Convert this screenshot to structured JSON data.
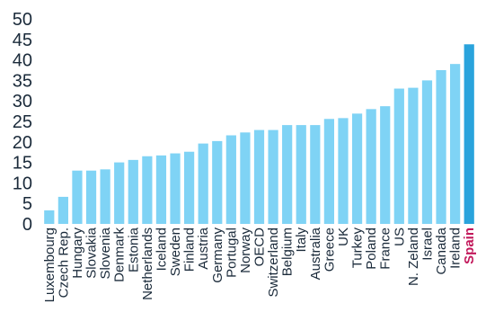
{
  "chart_data": {
    "type": "bar",
    "title": "",
    "xlabel": "",
    "ylabel": "",
    "ylim": [
      0,
      50
    ],
    "yticks": [
      0,
      5,
      10,
      15,
      20,
      25,
      30,
      35,
      40,
      45,
      50
    ],
    "grid": false,
    "legend": "none",
    "categories": [
      "Luxembourg",
      "Czech Rep.",
      "Hungary",
      "Slovakia",
      "Slovenia",
      "Denmark",
      "Estonia",
      "Netherlands",
      "Iceland",
      "Sweden",
      "Finland",
      "Austria",
      "Germany",
      "Portugal",
      "Norway",
      "OECD",
      "Switzerland",
      "Belgium",
      "Italy",
      "Australia",
      "Greece",
      "UK",
      "Turkey",
      "Poland",
      "France",
      "US",
      "N. Zeland",
      "Israel",
      "Canada",
      "Ireland",
      "Spain"
    ],
    "values": [
      3.3,
      6.6,
      13.0,
      13.0,
      13.3,
      15.0,
      15.6,
      16.5,
      16.7,
      17.2,
      17.6,
      19.6,
      20.2,
      21.6,
      22.3,
      22.9,
      22.9,
      24.1,
      24.1,
      24.1,
      25.6,
      25.8,
      26.9,
      28.0,
      28.7,
      33.0,
      33.2,
      35.0,
      37.5,
      39.0,
      43.8
    ],
    "highlight": "Spain",
    "colors": {
      "bar": "#7fd3f5",
      "highlight_bar": "#2aa3dc",
      "highlight_label": "#c2185b",
      "axis": "#1a2a3a"
    }
  }
}
